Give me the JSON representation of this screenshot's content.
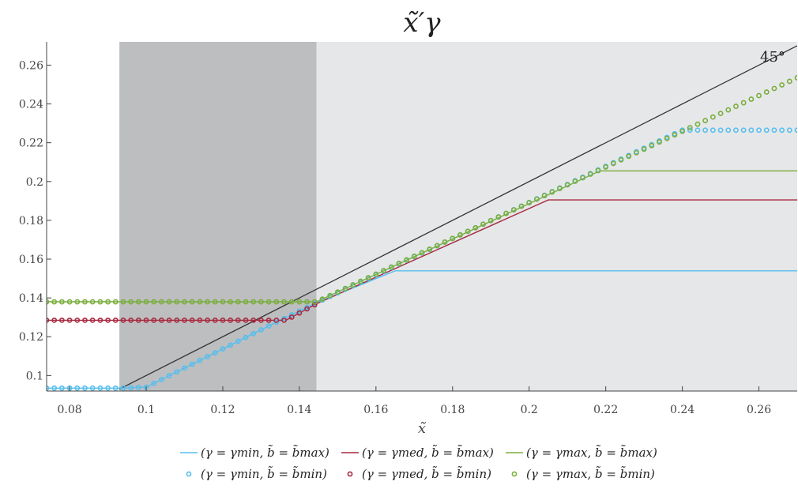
{
  "chart_data": {
    "type": "line",
    "title": "x̃′γ",
    "xlabel": "x̃",
    "ylabel": "",
    "xlim": [
      0.074,
      0.27
    ],
    "ylim": [
      0.092,
      0.272
    ],
    "x_ticks": [
      "0.08",
      "0.1",
      "0.12",
      "0.14",
      "0.16",
      "0.18",
      "0.2",
      "0.22",
      "0.24",
      "0.26"
    ],
    "x_tick_values": [
      0.08,
      0.1,
      0.12,
      0.14,
      0.16,
      0.18,
      0.2,
      0.22,
      0.24,
      0.26
    ],
    "y_ticks": [
      "0.1",
      "0.12",
      "0.14",
      "0.16",
      "0.18",
      "0.2",
      "0.22",
      "0.24",
      "0.26"
    ],
    "y_tick_values": [
      0.1,
      0.12,
      0.14,
      0.16,
      0.18,
      0.2,
      0.22,
      0.24,
      0.26
    ],
    "shaded_regions": [
      {
        "x0": 0.093,
        "x1": 0.1445,
        "color": "#bdbec0"
      },
      {
        "x0": 0.1445,
        "x1": 0.27,
        "color": "#e6e7e9"
      }
    ],
    "reference_line": {
      "label": "45°",
      "color": "#333333",
      "points": [
        [
          0.093,
          0.093
        ],
        [
          0.27,
          0.27
        ]
      ]
    },
    "series": [
      {
        "name": "(γ = γmin, b̃ = b̃max)",
        "style": "line",
        "color": "#56bfee",
        "points": [
          [
            0.074,
            0.0935
          ],
          [
            0.0925,
            0.0935
          ],
          [
            0.1,
            0.094
          ],
          [
            0.135,
            0.1285
          ],
          [
            0.1445,
            0.1375
          ],
          [
            0.165,
            0.154
          ],
          [
            0.27,
            0.154
          ]
        ]
      },
      {
        "name": "(γ = γmed, b̃ = b̃max)",
        "style": "line",
        "color": "#a8283e",
        "points": [
          [
            0.074,
            0.1285
          ],
          [
            0.1365,
            0.1285
          ],
          [
            0.1445,
            0.137
          ],
          [
            0.205,
            0.1905
          ],
          [
            0.27,
            0.1905
          ]
        ]
      },
      {
        "name": "(γ = γmax, b̃ = b̃max)",
        "style": "line",
        "color": "#7aae3c",
        "points": [
          [
            0.074,
            0.138
          ],
          [
            0.1445,
            0.138
          ],
          [
            0.2185,
            0.2055
          ],
          [
            0.27,
            0.2055
          ]
        ]
      },
      {
        "name": "(γ = γmin, b̃ = b̃min)",
        "style": "markers",
        "color": "#56bfee",
        "points": [
          [
            0.074,
            0.0935
          ],
          [
            0.0925,
            0.0935
          ],
          [
            0.1,
            0.094
          ],
          [
            0.135,
            0.1285
          ],
          [
            0.1445,
            0.1375
          ],
          [
            0.24,
            0.2265
          ],
          [
            0.27,
            0.2265
          ]
        ]
      },
      {
        "name": "(γ = γmed, b̃ = b̃min)",
        "style": "markers",
        "color": "#a8283e",
        "points": [
          [
            0.074,
            0.1285
          ],
          [
            0.1365,
            0.1285
          ],
          [
            0.1445,
            0.137
          ]
        ]
      },
      {
        "name": "(γ = γmax, b̃ = b̃min)",
        "style": "markers",
        "color": "#7aae3c",
        "points": [
          [
            0.074,
            0.138
          ],
          [
            0.1445,
            0.138
          ],
          [
            0.27,
            0.2535
          ]
        ]
      }
    ],
    "legend_position": "bottom",
    "grid": false
  }
}
